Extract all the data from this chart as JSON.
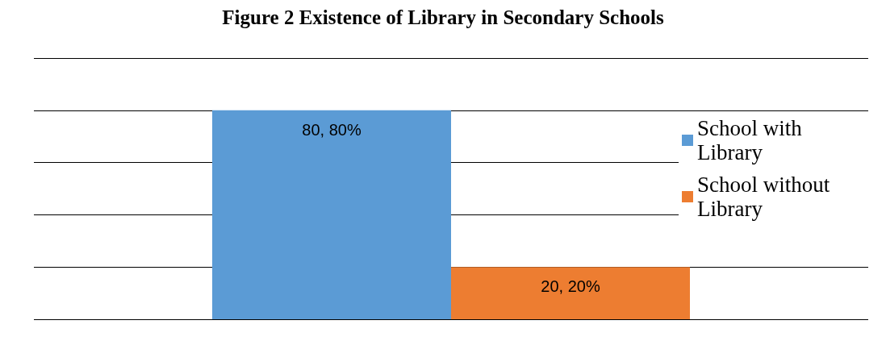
{
  "chart_data": {
    "type": "bar",
    "title": "Figure 2 Existence of Library in Secondary Schools",
    "categories": [
      null
    ],
    "series": [
      {
        "name": "School with Library",
        "color": "#5b9bd5",
        "values": [
          80
        ],
        "value_labels": [
          "80, 80%"
        ]
      },
      {
        "name": "School without Library",
        "color": "#ed7d31",
        "values": [
          20
        ],
        "value_labels": [
          "20, 20%"
        ]
      }
    ],
    "ylim": [
      0,
      100
    ],
    "yticks": [
      0,
      20,
      40,
      60,
      80,
      100
    ],
    "grid": "y",
    "legend": "right",
    "tick_labels": false
  }
}
